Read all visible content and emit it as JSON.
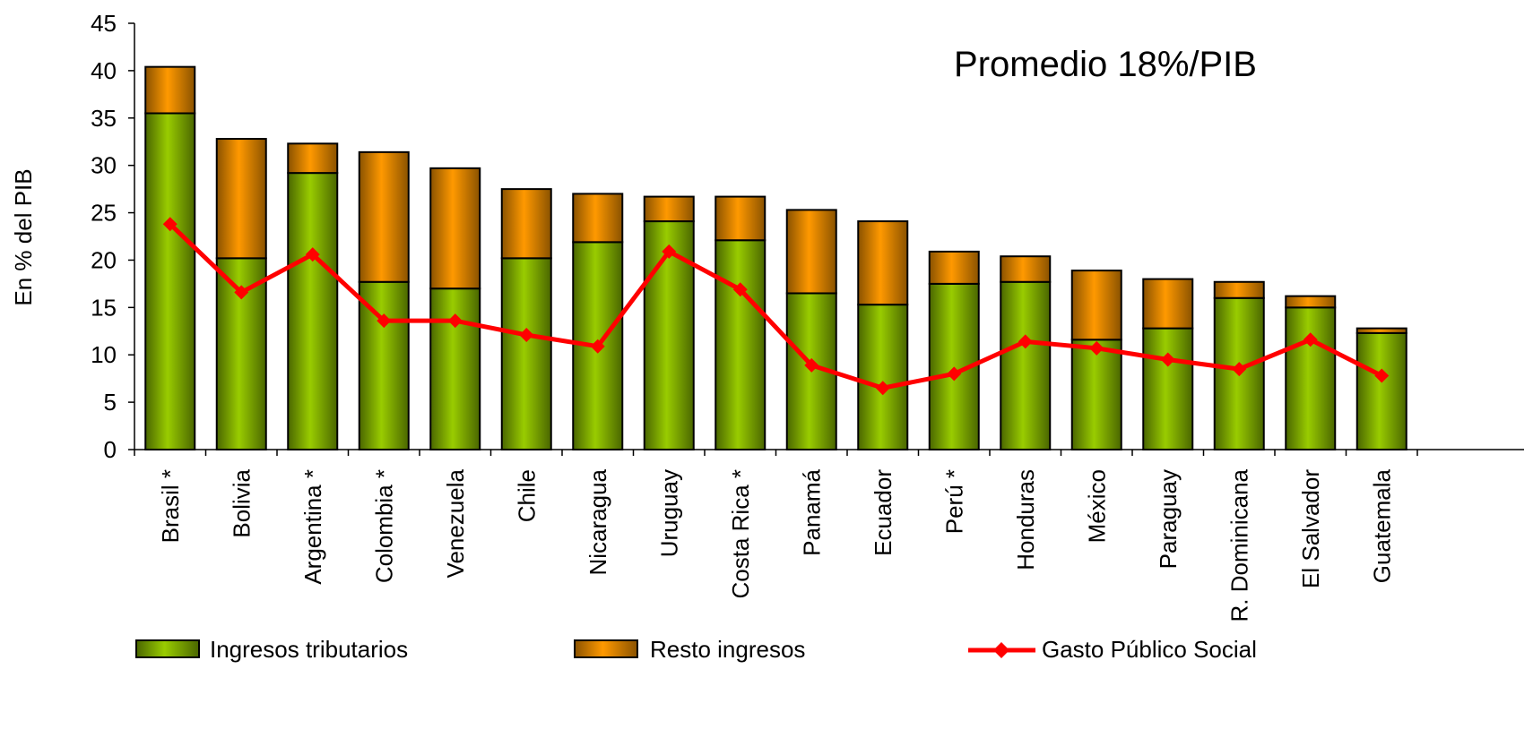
{
  "chart_data": {
    "type": "bar",
    "stacked": true,
    "annotation": "Promedio 18%/PIB",
    "ylabel": "En % del PIB",
    "ylim": [
      0,
      45
    ],
    "yticks": [
      "0",
      "5",
      "10",
      "15",
      "20",
      "25",
      "30",
      "35",
      "40",
      "45"
    ],
    "grid": false,
    "legend_position": "bottom",
    "categories": [
      "Brasil *",
      "Bolivia",
      "Argentina *",
      "Colombia *",
      "Venezuela",
      "Chile",
      "Nicaragua",
      "Uruguay",
      "Costa Rica *",
      "Panamá",
      "Ecuador",
      "Perú *",
      "Honduras",
      "México",
      "Paraguay",
      "R. Dominicana",
      "El Salvador",
      "Guatemala"
    ],
    "series": [
      {
        "name": "Ingresos tributarios",
        "kind": "bar",
        "color": "#8DC200",
        "values": [
          35.5,
          20.2,
          29.2,
          17.7,
          17.0,
          20.2,
          21.9,
          24.1,
          22.1,
          16.5,
          15.3,
          17.5,
          17.7,
          11.6,
          12.8,
          16.0,
          15.0,
          12.3
        ]
      },
      {
        "name": "Resto ingresos",
        "kind": "bar",
        "color": "#FF9900",
        "values": [
          4.9,
          12.6,
          3.1,
          13.7,
          12.7,
          7.3,
          5.1,
          2.6,
          4.6,
          8.8,
          8.8,
          3.4,
          2.7,
          7.3,
          5.2,
          1.7,
          1.2,
          0.5
        ]
      },
      {
        "name": "Gasto Público Social",
        "kind": "line",
        "color": "#FF0000",
        "values": [
          23.8,
          16.6,
          20.6,
          13.6,
          13.6,
          12.1,
          10.9,
          20.9,
          16.9,
          8.9,
          6.5,
          8.0,
          11.4,
          10.7,
          9.5,
          8.5,
          11.6,
          7.8
        ]
      }
    ]
  }
}
